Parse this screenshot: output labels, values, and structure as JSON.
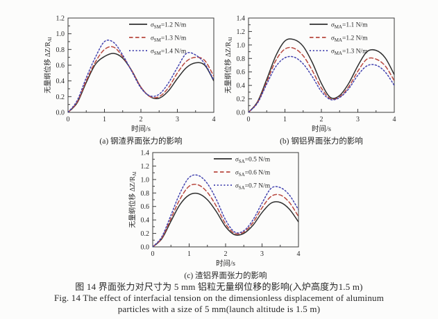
{
  "figure": {
    "caption_zh": "图 14  界面张力对尺寸为 5 mm 铝粒无量纲位移的影响(入炉高度为1.5 m)",
    "caption_en_line1": "Fig. 14  The effect of interfacial tension on the dimensionless displacement of aluminum",
    "caption_en_line2": "particles with a size of 5 mm(launch altitude is 1.5 m)"
  },
  "colors": {
    "series_solid": "#2e2e2e",
    "series_dashed": "#b8473e",
    "series_dotted": "#4343af",
    "axis": "#3a3a3a",
    "text": "#262626",
    "background": "#fcfcfb"
  },
  "chart_data": [
    {
      "id": "a",
      "type": "line",
      "subcaption": "(a) 钢渣界面张力的影响",
      "xlabel": "时间/s",
      "ylabel": "无量纲位移 ΔZ/R",
      "ylabel_sub": "Al",
      "xlim": [
        0,
        4
      ],
      "ylim": [
        0,
        1.2
      ],
      "xticks": [
        0,
        1,
        2,
        3,
        4
      ],
      "xticklabels": [
        "0",
        "1",
        "2",
        "3",
        "4"
      ],
      "yticks": [
        0,
        0.2,
        0.4,
        0.6,
        0.8,
        1.0,
        1.2
      ],
      "yticklabels": [
        "0.0",
        "0.2",
        "0.4",
        "0.6",
        "0.8",
        "1.0",
        "1.2"
      ],
      "xminor": 0.5,
      "yminor": 0.1,
      "grid": false,
      "legend_position": "top-right-inside",
      "x": [
        0,
        0.25,
        0.5,
        0.75,
        1,
        1.25,
        1.5,
        1.75,
        2,
        2.25,
        2.5,
        2.75,
        3,
        3.25,
        3.5,
        3.75,
        4
      ],
      "series": [
        {
          "sigma_sub": "SM",
          "label_rest": "=1.2 N/m",
          "style": "solid",
          "color": "#2e2e2e",
          "values": [
            0,
            0.12,
            0.38,
            0.61,
            0.71,
            0.75,
            0.69,
            0.53,
            0.32,
            0.2,
            0.18,
            0.27,
            0.43,
            0.57,
            0.63,
            0.6,
            0.4
          ]
        },
        {
          "sigma_sub": "SM",
          "label_rest": "=1.3 N/m",
          "style": "dashed",
          "color": "#b8473e",
          "values": [
            0,
            0.13,
            0.4,
            0.64,
            0.8,
            0.83,
            0.71,
            0.53,
            0.32,
            0.2,
            0.2,
            0.31,
            0.5,
            0.65,
            0.7,
            0.66,
            0.46
          ]
        },
        {
          "sigma_sub": "SM",
          "label_rest": "=1.4 N/m",
          "style": "dotted",
          "color": "#4343af",
          "values": [
            0,
            0.15,
            0.44,
            0.7,
            0.9,
            0.89,
            0.73,
            0.52,
            0.31,
            0.21,
            0.23,
            0.37,
            0.57,
            0.75,
            0.73,
            0.62,
            0.41
          ]
        }
      ]
    },
    {
      "id": "b",
      "type": "line",
      "subcaption": "(b) 钢铝界面张力的影响",
      "xlabel": "时间/s",
      "ylabel": "无量纲位移 ΔZ/R",
      "ylabel_sub": "Al",
      "xlim": [
        0,
        4
      ],
      "ylim": [
        0,
        1.4
      ],
      "xticks": [
        0,
        1,
        2,
        3,
        4
      ],
      "xticklabels": [
        "0",
        "1",
        "2",
        "3",
        "4"
      ],
      "yticks": [
        0,
        0.2,
        0.4,
        0.6,
        0.8,
        1.0,
        1.2,
        1.4
      ],
      "yticklabels": [
        "0.0",
        "0.2",
        "0.4",
        "0.6",
        "0.8",
        "1.0",
        "1.2",
        "1.4"
      ],
      "xminor": 0.5,
      "yminor": 0.1,
      "grid": false,
      "legend_position": "top-right-inside",
      "x": [
        0,
        0.25,
        0.5,
        0.75,
        1,
        1.25,
        1.5,
        1.75,
        2,
        2.25,
        2.5,
        2.75,
        3,
        3.25,
        3.5,
        3.75,
        4
      ],
      "series": [
        {
          "sigma_sub": "MA",
          "label_rest": "=1.1 N/m",
          "style": "solid",
          "color": "#2e2e2e",
          "values": [
            0,
            0.16,
            0.49,
            0.84,
            1.06,
            1.08,
            0.98,
            0.74,
            0.43,
            0.22,
            0.25,
            0.43,
            0.69,
            0.9,
            0.92,
            0.81,
            0.56
          ]
        },
        {
          "sigma_sub": "MA",
          "label_rest": "=1.2 N/m",
          "style": "dashed",
          "color": "#b8473e",
          "values": [
            0,
            0.15,
            0.45,
            0.77,
            0.94,
            0.95,
            0.84,
            0.62,
            0.36,
            0.2,
            0.23,
            0.38,
            0.61,
            0.79,
            0.79,
            0.69,
            0.47
          ]
        },
        {
          "sigma_sub": "MA",
          "label_rest": "=1.3 N/m",
          "style": "dotted",
          "color": "#4343af",
          "values": [
            0,
            0.14,
            0.42,
            0.68,
            0.81,
            0.82,
            0.72,
            0.53,
            0.31,
            0.19,
            0.22,
            0.35,
            0.55,
            0.69,
            0.7,
            0.6,
            0.4
          ]
        }
      ]
    },
    {
      "id": "c",
      "type": "line",
      "subcaption": "(c) 渣铝界面张力的影响",
      "xlabel": "时间/s",
      "ylabel": "无量纲位移 ΔZ/R",
      "ylabel_sub": "Al",
      "xlim": [
        0,
        4
      ],
      "ylim": [
        0,
        1.4
      ],
      "xticks": [
        0,
        1,
        2,
        3,
        4
      ],
      "xticklabels": [
        "0",
        "1",
        "2",
        "3",
        "4"
      ],
      "yticks": [
        0,
        0.2,
        0.4,
        0.6,
        0.8,
        1.0,
        1.2,
        1.4
      ],
      "yticklabels": [
        "0.0",
        "0.2",
        "0.4",
        "0.6",
        "0.8",
        "1.0",
        "1.2",
        "1.4"
      ],
      "xminor": 0.5,
      "yminor": 0.1,
      "grid": false,
      "legend_position": "top-right-inside",
      "x": [
        0,
        0.25,
        0.5,
        0.75,
        1,
        1.25,
        1.5,
        1.75,
        2,
        2.25,
        2.5,
        2.75,
        3,
        3.25,
        3.5,
        3.75,
        4
      ],
      "series": [
        {
          "sigma_sub": "SA",
          "label_rest": "=0.5 N/m",
          "style": "solid",
          "color": "#2e2e2e",
          "values": [
            0,
            0.12,
            0.38,
            0.63,
            0.77,
            0.79,
            0.7,
            0.52,
            0.3,
            0.18,
            0.2,
            0.32,
            0.51,
            0.65,
            0.66,
            0.56,
            0.37
          ]
        },
        {
          "sigma_sub": "SA",
          "label_rest": "=0.6 N/m",
          "style": "dashed",
          "color": "#b8473e",
          "values": [
            0,
            0.13,
            0.42,
            0.71,
            0.9,
            0.92,
            0.81,
            0.6,
            0.34,
            0.2,
            0.22,
            0.36,
            0.58,
            0.75,
            0.77,
            0.66,
            0.45
          ]
        },
        {
          "sigma_sub": "SA",
          "label_rest": "=0.7 N/m",
          "style": "dotted",
          "color": "#4343af",
          "values": [
            0,
            0.15,
            0.47,
            0.8,
            1.03,
            1.06,
            0.94,
            0.7,
            0.4,
            0.22,
            0.24,
            0.4,
            0.65,
            0.87,
            0.88,
            0.77,
            0.55
          ]
        }
      ]
    }
  ]
}
